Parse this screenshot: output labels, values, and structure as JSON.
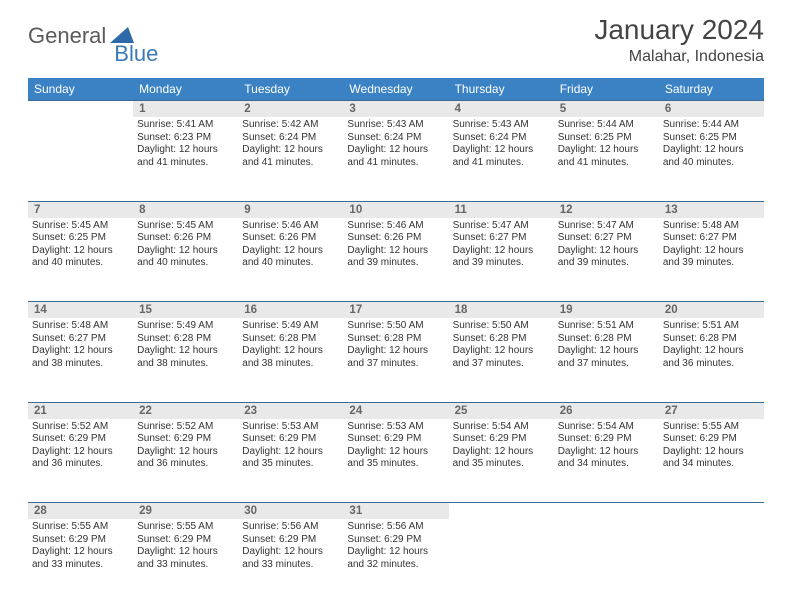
{
  "logo": {
    "part1": "General",
    "part2": "Blue"
  },
  "title": "January 2024",
  "location": "Malahar, Indonesia",
  "dayHeaders": [
    "Sunday",
    "Monday",
    "Tuesday",
    "Wednesday",
    "Thursday",
    "Friday",
    "Saturday"
  ],
  "colors": {
    "headerBg": "#3b82c4",
    "dayNumBg": "#e9e9e9",
    "borderTop": "#3b6a94",
    "logoBlue": "#3b7ab8"
  },
  "weeks": [
    [
      null,
      {
        "n": "1",
        "sr": "5:41 AM",
        "ss": "6:23 PM",
        "dl": "12 hours and 41 minutes."
      },
      {
        "n": "2",
        "sr": "5:42 AM",
        "ss": "6:24 PM",
        "dl": "12 hours and 41 minutes."
      },
      {
        "n": "3",
        "sr": "5:43 AM",
        "ss": "6:24 PM",
        "dl": "12 hours and 41 minutes."
      },
      {
        "n": "4",
        "sr": "5:43 AM",
        "ss": "6:24 PM",
        "dl": "12 hours and 41 minutes."
      },
      {
        "n": "5",
        "sr": "5:44 AM",
        "ss": "6:25 PM",
        "dl": "12 hours and 41 minutes."
      },
      {
        "n": "6",
        "sr": "5:44 AM",
        "ss": "6:25 PM",
        "dl": "12 hours and 40 minutes."
      }
    ],
    [
      {
        "n": "7",
        "sr": "5:45 AM",
        "ss": "6:25 PM",
        "dl": "12 hours and 40 minutes."
      },
      {
        "n": "8",
        "sr": "5:45 AM",
        "ss": "6:26 PM",
        "dl": "12 hours and 40 minutes."
      },
      {
        "n": "9",
        "sr": "5:46 AM",
        "ss": "6:26 PM",
        "dl": "12 hours and 40 minutes."
      },
      {
        "n": "10",
        "sr": "5:46 AM",
        "ss": "6:26 PM",
        "dl": "12 hours and 39 minutes."
      },
      {
        "n": "11",
        "sr": "5:47 AM",
        "ss": "6:27 PM",
        "dl": "12 hours and 39 minutes."
      },
      {
        "n": "12",
        "sr": "5:47 AM",
        "ss": "6:27 PM",
        "dl": "12 hours and 39 minutes."
      },
      {
        "n": "13",
        "sr": "5:48 AM",
        "ss": "6:27 PM",
        "dl": "12 hours and 39 minutes."
      }
    ],
    [
      {
        "n": "14",
        "sr": "5:48 AM",
        "ss": "6:27 PM",
        "dl": "12 hours and 38 minutes."
      },
      {
        "n": "15",
        "sr": "5:49 AM",
        "ss": "6:28 PM",
        "dl": "12 hours and 38 minutes."
      },
      {
        "n": "16",
        "sr": "5:49 AM",
        "ss": "6:28 PM",
        "dl": "12 hours and 38 minutes."
      },
      {
        "n": "17",
        "sr": "5:50 AM",
        "ss": "6:28 PM",
        "dl": "12 hours and 37 minutes."
      },
      {
        "n": "18",
        "sr": "5:50 AM",
        "ss": "6:28 PM",
        "dl": "12 hours and 37 minutes."
      },
      {
        "n": "19",
        "sr": "5:51 AM",
        "ss": "6:28 PM",
        "dl": "12 hours and 37 minutes."
      },
      {
        "n": "20",
        "sr": "5:51 AM",
        "ss": "6:28 PM",
        "dl": "12 hours and 36 minutes."
      }
    ],
    [
      {
        "n": "21",
        "sr": "5:52 AM",
        "ss": "6:29 PM",
        "dl": "12 hours and 36 minutes."
      },
      {
        "n": "22",
        "sr": "5:52 AM",
        "ss": "6:29 PM",
        "dl": "12 hours and 36 minutes."
      },
      {
        "n": "23",
        "sr": "5:53 AM",
        "ss": "6:29 PM",
        "dl": "12 hours and 35 minutes."
      },
      {
        "n": "24",
        "sr": "5:53 AM",
        "ss": "6:29 PM",
        "dl": "12 hours and 35 minutes."
      },
      {
        "n": "25",
        "sr": "5:54 AM",
        "ss": "6:29 PM",
        "dl": "12 hours and 35 minutes."
      },
      {
        "n": "26",
        "sr": "5:54 AM",
        "ss": "6:29 PM",
        "dl": "12 hours and 34 minutes."
      },
      {
        "n": "27",
        "sr": "5:55 AM",
        "ss": "6:29 PM",
        "dl": "12 hours and 34 minutes."
      }
    ],
    [
      {
        "n": "28",
        "sr": "5:55 AM",
        "ss": "6:29 PM",
        "dl": "12 hours and 33 minutes."
      },
      {
        "n": "29",
        "sr": "5:55 AM",
        "ss": "6:29 PM",
        "dl": "12 hours and 33 minutes."
      },
      {
        "n": "30",
        "sr": "5:56 AM",
        "ss": "6:29 PM",
        "dl": "12 hours and 33 minutes."
      },
      {
        "n": "31",
        "sr": "5:56 AM",
        "ss": "6:29 PM",
        "dl": "12 hours and 32 minutes."
      },
      null,
      null,
      null
    ]
  ],
  "labels": {
    "sunrise": "Sunrise: ",
    "sunset": "Sunset: ",
    "daylight": "Daylight: "
  }
}
